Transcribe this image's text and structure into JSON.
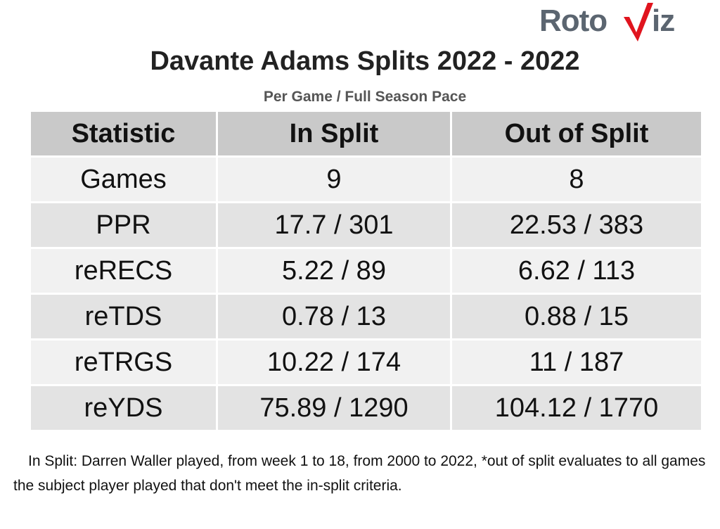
{
  "logo": {
    "part1": "Roto",
    "part2": "iz",
    "accent_color": "#e0141e",
    "text_color": "#5b6570"
  },
  "title": "Davante Adams Splits 2022 - 2022",
  "subtitle": "Per Game / Full Season Pace",
  "table": {
    "headers": [
      "Statistic",
      "In Split",
      "Out of Split"
    ],
    "rows": [
      [
        "Games",
        "9",
        "8"
      ],
      [
        "PPR",
        "17.7 / 301",
        "22.53 / 383"
      ],
      [
        "reRECS",
        "5.22 / 89",
        "6.62 / 113"
      ],
      [
        "reTDS",
        "0.78 / 13",
        "0.88 / 15"
      ],
      [
        "reTRGS",
        "10.22 / 174",
        "11 / 187"
      ],
      [
        "reYDS",
        "75.89 / 1290",
        "104.12 / 1770"
      ]
    ]
  },
  "footnote": "In Split: Darren Waller played, from week 1 to 18, from 2000 to 2022,  *out of split evaluates to all games the subject player played that don't meet the in-split criteria."
}
